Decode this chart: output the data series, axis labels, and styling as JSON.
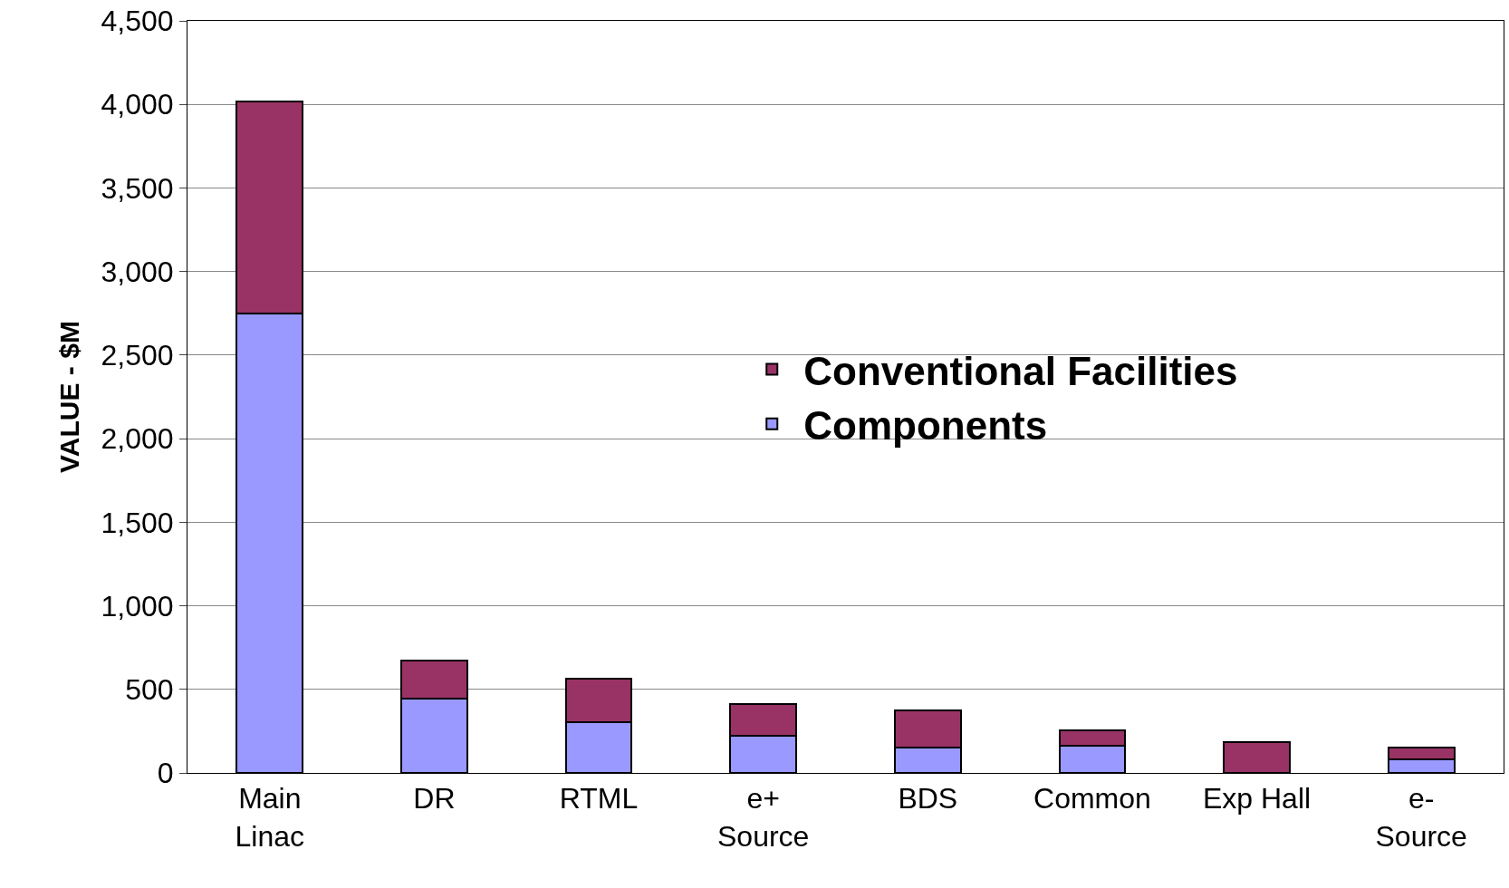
{
  "chart_data": {
    "type": "bar",
    "stacked": true,
    "ylabel": "VALUE - $M",
    "categories": [
      "Main\nLinac",
      "DR",
      "RTML",
      "e+\nSource",
      "BDS",
      "Common",
      "Exp Hall",
      "e-\nSource"
    ],
    "series": [
      {
        "name": "Components",
        "color": "#9999ff",
        "values": [
          2750,
          445,
          305,
          220,
          150,
          165,
          0,
          80
        ]
      },
      {
        "name": "Conventional Facilities",
        "color": "#993366",
        "values": [
          1270,
          230,
          260,
          190,
          225,
          90,
          185,
          70
        ]
      }
    ],
    "ylim": [
      0,
      4500
    ],
    "yticks": [
      {
        "value": 0,
        "label": "0"
      },
      {
        "value": 500,
        "label": "500"
      },
      {
        "value": 1000,
        "label": "1,000"
      },
      {
        "value": 1500,
        "label": "1,500"
      },
      {
        "value": 2000,
        "label": "2,000"
      },
      {
        "value": 2500,
        "label": "2,500"
      },
      {
        "value": 3000,
        "label": "3,000"
      },
      {
        "value": 3500,
        "label": "3,500"
      },
      {
        "value": 4000,
        "label": "4,000"
      },
      {
        "value": 4500,
        "label": "4,500"
      }
    ],
    "grid": "y",
    "legend": "right"
  }
}
